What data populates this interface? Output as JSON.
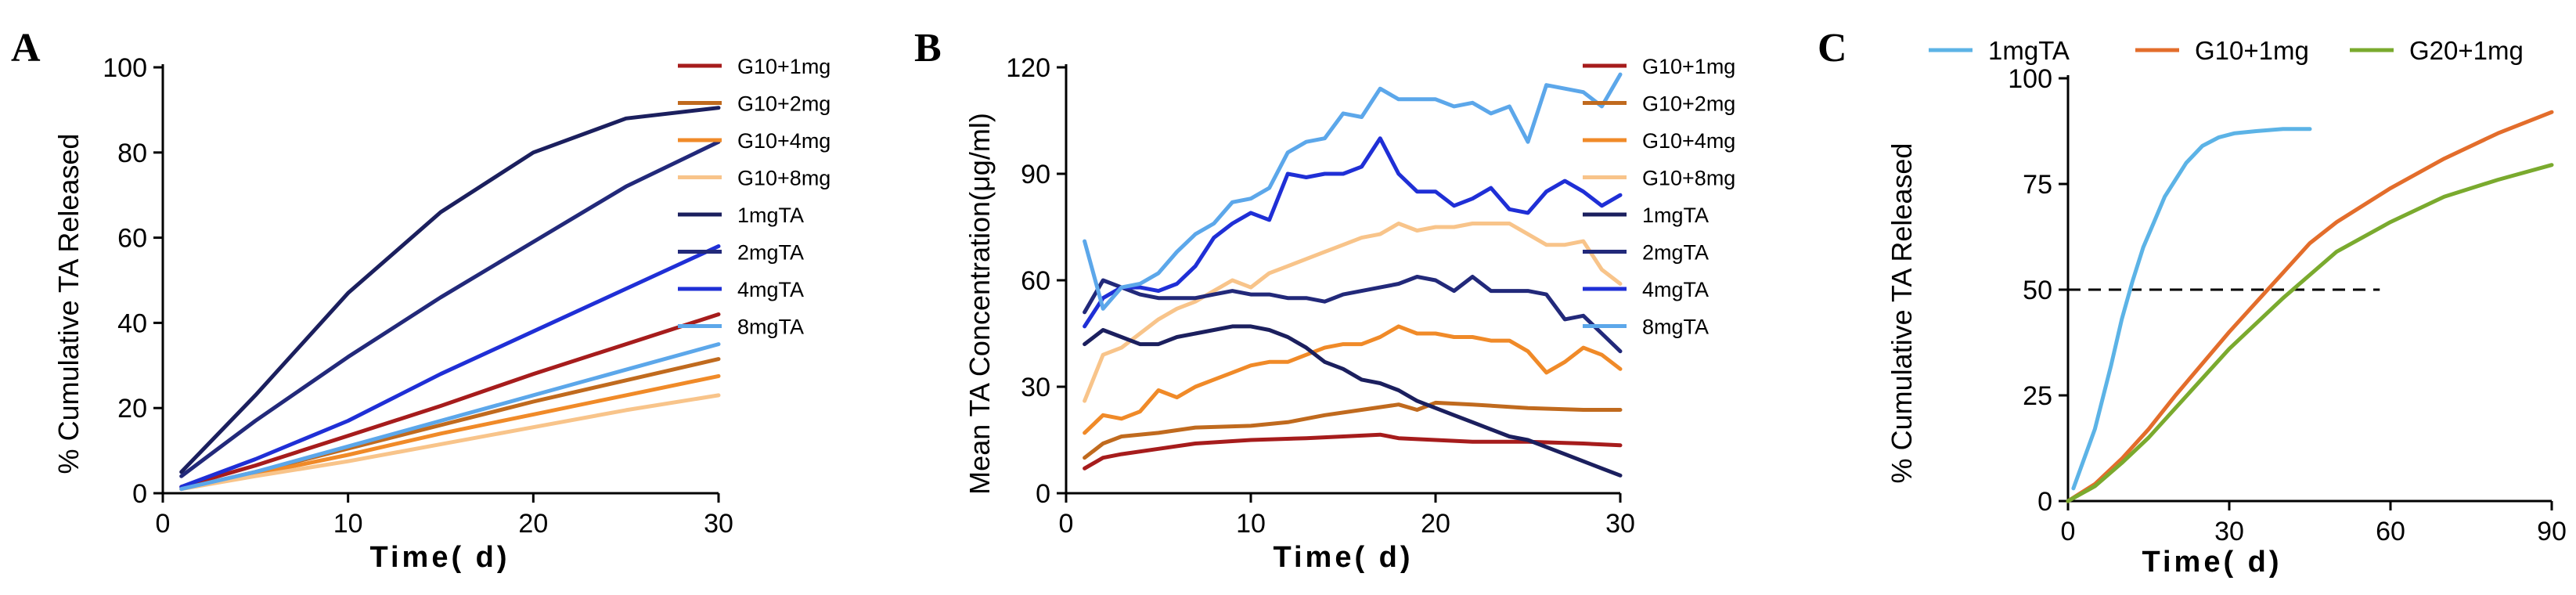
{
  "chart_data": [
    {
      "panel": "A",
      "type": "line",
      "title": "",
      "xlabel": "Time( d)",
      "ylabel": "% Cumulative TA Released",
      "xlim": [
        0,
        30
      ],
      "ylim": [
        0,
        100
      ],
      "xticks": [
        0,
        10,
        20,
        30
      ],
      "yticks": [
        0,
        20,
        40,
        60,
        80,
        100
      ],
      "legend_position": "right",
      "x": [
        1,
        5,
        10,
        15,
        20,
        25,
        30
      ],
      "series": [
        {
          "name": "G10+1mg",
          "color": "#a61c1c",
          "values": [
            1.5,
            6.5,
            13.5,
            20.5,
            28,
            35,
            42
          ]
        },
        {
          "name": "G10+2mg",
          "color": "#c06a1e",
          "values": [
            1,
            5,
            10.5,
            16,
            21.5,
            26.5,
            31.5
          ]
        },
        {
          "name": "G10+4mg",
          "color": "#f08a28",
          "values": [
            1,
            4.5,
            9,
            14,
            18.5,
            23,
            27.5
          ]
        },
        {
          "name": "G10+8mg",
          "color": "#f8c48a",
          "values": [
            1,
            4,
            7.5,
            11.5,
            15.5,
            19.5,
            23
          ]
        },
        {
          "name": "1mgTA",
          "color": "#1b1f5e",
          "values": [
            5,
            23,
            47,
            66,
            80,
            88,
            90.5
          ]
        },
        {
          "name": "2mgTA",
          "color": "#22297a",
          "values": [
            4,
            17,
            32,
            46,
            59,
            72,
            82.5
          ]
        },
        {
          "name": "4mgTA",
          "color": "#1f2fd6",
          "values": [
            1.5,
            8,
            17,
            28,
            38,
            48,
            58
          ]
        },
        {
          "name": "8mgTA",
          "color": "#5ca7ea",
          "values": [
            1,
            5,
            11,
            17,
            23,
            29,
            35
          ]
        }
      ]
    },
    {
      "panel": "B",
      "type": "line",
      "title": "",
      "xlabel": "Time( d)",
      "ylabel": "Mean TA Concentration(μg/ml)",
      "xlim": [
        0,
        30
      ],
      "ylim": [
        0,
        120
      ],
      "xticks": [
        0,
        10,
        20,
        30
      ],
      "yticks": [
        0,
        30,
        60,
        90,
        120
      ],
      "legend_position": "right",
      "series": [
        {
          "name": "G10+1mg",
          "color": "#a61c1c",
          "x": [
            1,
            2,
            3,
            5,
            7,
            10,
            13,
            15,
            17,
            18,
            20,
            22,
            25,
            28,
            30
          ],
          "values": [
            7,
            10,
            11,
            12.5,
            14,
            15,
            15.5,
            16,
            16.5,
            15.5,
            15,
            14.5,
            14.5,
            14,
            13.5
          ]
        },
        {
          "name": "G10+2mg",
          "color": "#c06a1e",
          "x": [
            1,
            2,
            3,
            5,
            7,
            10,
            12,
            14,
            16,
            18,
            19,
            20,
            22,
            25,
            28,
            30
          ],
          "values": [
            10,
            14,
            16,
            17,
            18.5,
            19,
            20,
            22,
            23.5,
            25,
            23.5,
            25.5,
            25,
            24,
            23.5,
            23.5
          ]
        },
        {
          "name": "G10+4mg",
          "color": "#f08a28",
          "x": [
            1,
            2,
            3,
            4,
            5,
            6,
            7,
            8,
            9,
            10,
            11,
            12,
            13,
            14,
            15,
            16,
            17,
            18,
            19,
            20,
            21,
            22,
            23,
            24,
            25,
            26,
            27,
            28,
            29,
            30
          ],
          "values": [
            17,
            22,
            21,
            23,
            29,
            27,
            30,
            32,
            34,
            36,
            37,
            37,
            39,
            41,
            42,
            42,
            44,
            47,
            45,
            45,
            44,
            44,
            43,
            43,
            40,
            34,
            37,
            41,
            39,
            35
          ]
        },
        {
          "name": "G10+8mg",
          "color": "#f8c48a",
          "x": [
            1,
            2,
            3,
            4,
            5,
            6,
            7,
            8,
            9,
            10,
            11,
            12,
            13,
            14,
            15,
            16,
            17,
            18,
            19,
            20,
            21,
            22,
            23,
            24,
            25,
            26,
            27,
            28,
            29,
            30
          ],
          "values": [
            26,
            39,
            41,
            45,
            49,
            52,
            54,
            57,
            60,
            58,
            62,
            64,
            66,
            68,
            70,
            72,
            73,
            76,
            74,
            75,
            75,
            76,
            76,
            76,
            73,
            70,
            70,
            71,
            63,
            59
          ]
        },
        {
          "name": "1mgTA",
          "color": "#1b1f5e",
          "x": [
            1,
            2,
            3,
            4,
            5,
            6,
            7,
            8,
            9,
            10,
            11,
            12,
            13,
            14,
            15,
            16,
            17,
            18,
            19,
            20,
            21,
            22,
            23,
            24,
            25,
            26,
            27,
            28,
            29,
            30
          ],
          "values": [
            42,
            46,
            44,
            42,
            42,
            44,
            45,
            46,
            47,
            47,
            46,
            44,
            41,
            37,
            35,
            32,
            31,
            29,
            26,
            24,
            22,
            20,
            18,
            16,
            15,
            13,
            11,
            9,
            7,
            5
          ]
        },
        {
          "name": "2mgTA",
          "color": "#22297a",
          "x": [
            1,
            2,
            3,
            4,
            5,
            6,
            7,
            8,
            9,
            10,
            11,
            12,
            13,
            14,
            15,
            16,
            17,
            18,
            19,
            20,
            21,
            22,
            23,
            24,
            25,
            26,
            27,
            28,
            29,
            30
          ],
          "values": [
            51,
            60,
            58,
            56,
            55,
            55,
            55,
            56,
            57,
            56,
            56,
            55,
            55,
            54,
            56,
            57,
            58,
            59,
            61,
            60,
            57,
            61,
            57,
            57,
            57,
            56,
            49,
            50,
            45,
            40
          ]
        },
        {
          "name": "4mgTA",
          "color": "#1f2fd6",
          "x": [
            1,
            2,
            3,
            4,
            5,
            6,
            7,
            8,
            9,
            10,
            11,
            12,
            13,
            14,
            15,
            16,
            17,
            18,
            19,
            20,
            21,
            22,
            23,
            24,
            25,
            26,
            27,
            28,
            29,
            30
          ],
          "values": [
            47,
            55,
            58,
            58,
            57,
            59,
            64,
            72,
            76,
            79,
            77,
            90,
            89,
            90,
            90,
            92,
            100,
            90,
            85,
            85,
            81,
            83,
            86,
            80,
            79,
            85,
            88,
            85,
            81,
            84
          ]
        },
        {
          "name": "8mgTA",
          "color": "#5ca7ea",
          "x": [
            1,
            2,
            3,
            4,
            5,
            6,
            7,
            8,
            9,
            10,
            11,
            12,
            13,
            14,
            15,
            16,
            17,
            18,
            19,
            20,
            21,
            22,
            23,
            24,
            25,
            26,
            27,
            28,
            29,
            30
          ],
          "values": [
            71,
            52,
            58,
            59,
            62,
            68,
            73,
            76,
            82,
            83,
            86,
            96,
            99,
            100,
            107,
            106,
            114,
            111,
            111,
            111,
            109,
            110,
            107,
            109,
            99,
            115,
            114,
            113,
            109,
            118
          ]
        }
      ]
    },
    {
      "panel": "C",
      "type": "line",
      "title": "",
      "xlabel": "Time( d)",
      "ylabel": "% Cumulative TA Released",
      "xlim": [
        0,
        90
      ],
      "ylim": [
        0,
        100
      ],
      "xticks": [
        0,
        30,
        60,
        90
      ],
      "yticks": [
        0,
        25,
        50,
        75,
        100
      ],
      "legend_position": "top",
      "reference_line": {
        "y": 50,
        "x_range": [
          0,
          58
        ],
        "style": "dashed"
      },
      "series": [
        {
          "name": "1mgTA",
          "color": "#5cb3e6",
          "x": [
            1,
            3,
            5,
            8,
            10,
            12,
            14,
            16,
            18,
            20,
            22,
            25,
            28,
            31,
            35,
            40,
            45
          ],
          "values": [
            3,
            10,
            17,
            32,
            43,
            52,
            60,
            66,
            72,
            76,
            80,
            84,
            86,
            87,
            87.5,
            88,
            88
          ]
        },
        {
          "name": "G10+1mg",
          "color": "#e36d2b",
          "x": [
            0,
            5,
            10,
            15,
            20,
            30,
            40,
            45,
            50,
            60,
            70,
            80,
            90
          ],
          "values": [
            0,
            4,
            10,
            17,
            25,
            40,
            54,
            61,
            66,
            74,
            81,
            87,
            92
          ]
        },
        {
          "name": "G20+1mg",
          "color": "#7aaa2e",
          "x": [
            0,
            5,
            10,
            15,
            20,
            30,
            40,
            50,
            60,
            70,
            80,
            90
          ],
          "values": [
            0,
            3.5,
            9,
            15,
            22,
            36,
            48,
            59,
            66,
            72,
            76,
            79.5
          ]
        }
      ]
    }
  ]
}
